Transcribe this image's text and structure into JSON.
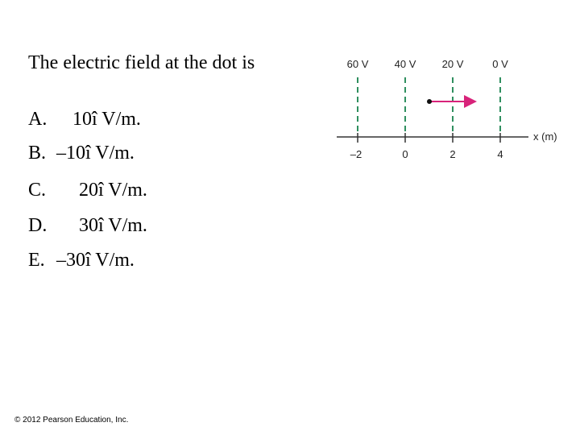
{
  "question": "The electric field at the dot is",
  "options": [
    {
      "letter": "A.",
      "text": "10î V/m."
    },
    {
      "letter": "B.",
      "text": "–10î V/m."
    },
    {
      "letter": "C.",
      "text": "20î V/m."
    },
    {
      "letter": "D.",
      "text": "30î V/m."
    },
    {
      "letter": "E.",
      "text": "–30î V/m."
    }
  ],
  "figure": {
    "potentials": [
      "60 V",
      "40 V",
      "20 V",
      "0 V"
    ],
    "ticks": [
      "–2",
      "0",
      "2",
      "4"
    ],
    "axis_label": "x (m)"
  },
  "footer": "© 2012 Pearson Education, Inc."
}
